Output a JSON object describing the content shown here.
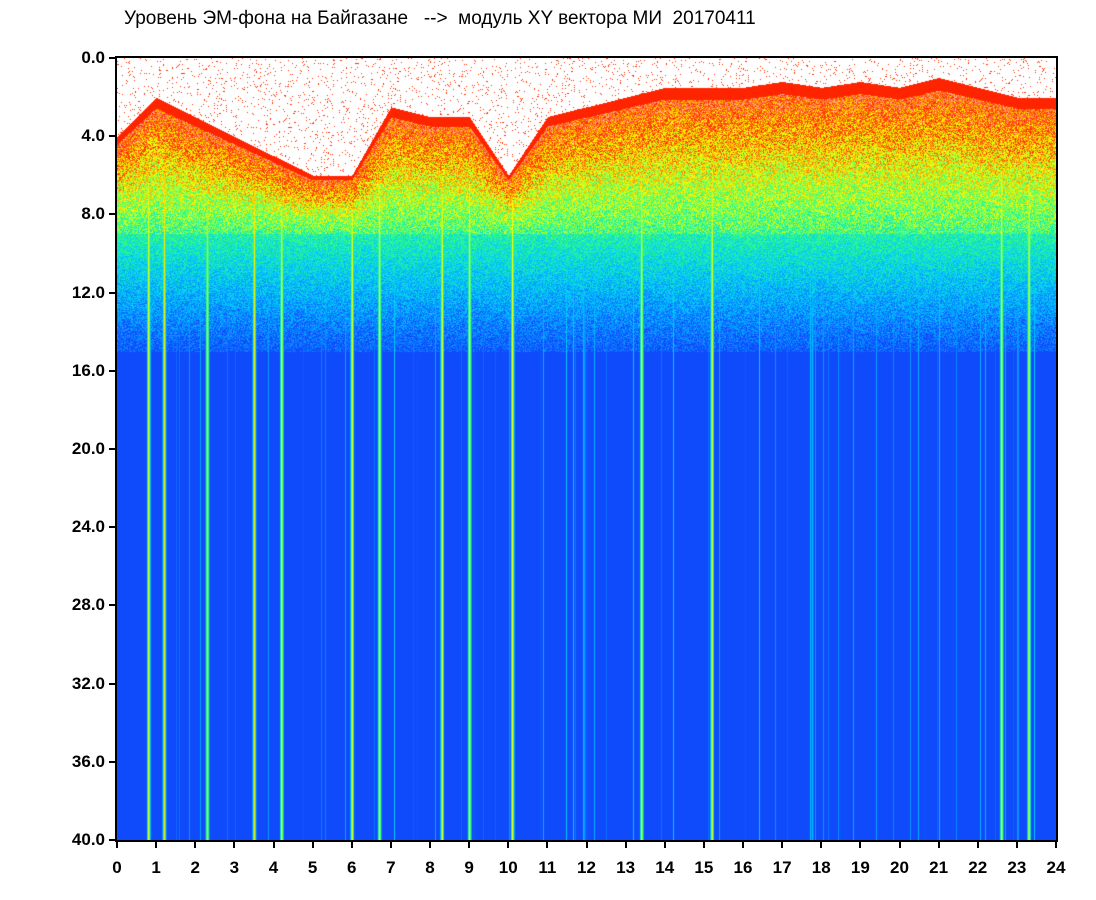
{
  "chart_data": {
    "type": "heatmap",
    "title": "Уровень ЭМ-фона на Байгазане   -->  модуль XY вектора МИ  20170411",
    "xlabel": "",
    "ylabel": "",
    "xlim": [
      0,
      24
    ],
    "ylim": [
      40.0,
      0.0
    ],
    "y_reversed": true,
    "x_ticks": [
      "0",
      "1",
      "2",
      "3",
      "4",
      "5",
      "6",
      "7",
      "8",
      "9",
      "10",
      "11",
      "12",
      "13",
      "14",
      "15",
      "16",
      "17",
      "18",
      "19",
      "20",
      "21",
      "22",
      "23",
      "24"
    ],
    "y_ticks": [
      "0.0",
      "4.0",
      "8.0",
      "12.0",
      "16.0",
      "20.0",
      "24.0",
      "28.0",
      "32.0",
      "36.0",
      "40.0"
    ],
    "colormap": [
      "#0a1ad0",
      "#1050ff",
      "#00c8ff",
      "#30ff80",
      "#ffff00",
      "#ff2000",
      "#ffffff"
    ],
    "band_top_by_hour": [
      {
        "x": 0,
        "y": 4.0
      },
      {
        "x": 1,
        "y": 2.0
      },
      {
        "x": 2,
        "y": 3.0
      },
      {
        "x": 3,
        "y": 4.0
      },
      {
        "x": 4,
        "y": 5.0
      },
      {
        "x": 5,
        "y": 6.0
      },
      {
        "x": 6,
        "y": 6.0
      },
      {
        "x": 7,
        "y": 2.5
      },
      {
        "x": 8,
        "y": 3.0
      },
      {
        "x": 9,
        "y": 3.0
      },
      {
        "x": 10,
        "y": 6.0
      },
      {
        "x": 11,
        "y": 3.0
      },
      {
        "x": 12,
        "y": 2.5
      },
      {
        "x": 13,
        "y": 2.0
      },
      {
        "x": 14,
        "y": 1.5
      },
      {
        "x": 15,
        "y": 1.5
      },
      {
        "x": 16,
        "y": 1.5
      },
      {
        "x": 17,
        "y": 1.2
      },
      {
        "x": 18,
        "y": 1.5
      },
      {
        "x": 19,
        "y": 1.2
      },
      {
        "x": 20,
        "y": 1.5
      },
      {
        "x": 21,
        "y": 1.0
      },
      {
        "x": 22,
        "y": 1.5
      },
      {
        "x": 23,
        "y": 2.0
      },
      {
        "x": 24,
        "y": 2.0
      }
    ],
    "band_bottom_y": 9.0,
    "noise_floor_y": 15.0,
    "bright_streaks_hours": [
      0.8,
      1.2,
      2.3,
      3.5,
      4.2,
      6.0,
      6.7,
      8.3,
      9.0,
      10.1,
      13.4,
      15.2,
      22.6,
      23.3
    ]
  }
}
